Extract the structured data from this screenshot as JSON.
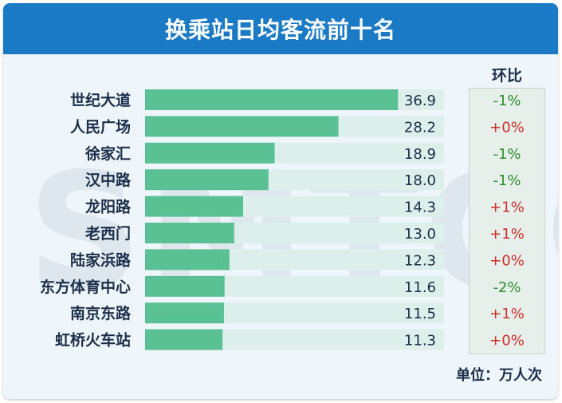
{
  "title": "换乘站日均客流前十名",
  "watermark": "SMTCC",
  "change_header": "环比",
  "unit_label": "单位：万人次",
  "colors": {
    "title_bg": "#1a7ac5",
    "bar": "#5ac195",
    "bar_track": "#dcefeb",
    "positive": "#d0302a",
    "negative": "#2d8e2d",
    "label": "#1c2f4a"
  },
  "chart_data": {
    "type": "bar",
    "orientation": "horizontal",
    "categories": [
      "世纪大道",
      "人民广场",
      "徐家汇",
      "汉中路",
      "龙阳路",
      "老西门",
      "陆家浜路",
      "东方体育中心",
      "南京东路",
      "虹桥火车站"
    ],
    "values": [
      36.9,
      28.2,
      18.9,
      18.0,
      14.3,
      13.0,
      12.3,
      11.6,
      11.5,
      11.3
    ],
    "change": [
      "-1%",
      "+0%",
      "-1%",
      "-1%",
      "+1%",
      "+1%",
      "+0%",
      "-2%",
      "+1%",
      "+0%"
    ],
    "xlim": [
      0,
      40
    ],
    "grid": false,
    "legend": "none"
  }
}
